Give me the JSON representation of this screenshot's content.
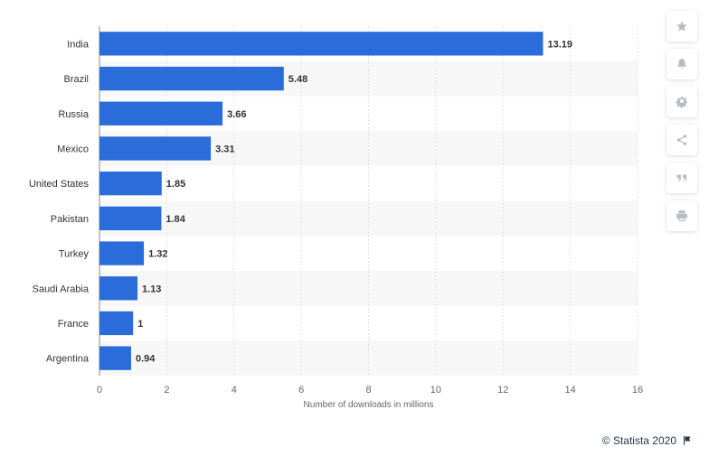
{
  "chart_data": {
    "type": "bar",
    "orientation": "horizontal",
    "categories": [
      "India",
      "Brazil",
      "Russia",
      "Mexico",
      "United States",
      "Pakistan",
      "Turkey",
      "Saudi Arabia",
      "France",
      "Argentina"
    ],
    "values": [
      13.19,
      5.48,
      3.66,
      3.31,
      1.85,
      1.84,
      1.32,
      1.13,
      1,
      0.94
    ],
    "value_labels": [
      "13.19",
      "5.48",
      "3.66",
      "3.31",
      "1.85",
      "1.84",
      "1.32",
      "1.13",
      "1",
      "0.94"
    ],
    "xlabel": "Number of downloads in millions",
    "xlim": [
      0,
      16
    ],
    "xticks": [
      0,
      2,
      4,
      6,
      8,
      10,
      12,
      14,
      16
    ],
    "grid": true,
    "bar_color": "#2a6cd9",
    "stripe_color": "#f7f7f7"
  },
  "toolbar": {
    "icons": [
      "star-icon",
      "bell-icon",
      "gear-icon",
      "share-icon",
      "quote-icon",
      "print-icon"
    ]
  },
  "footer": {
    "copyright": "© Statista 2020",
    "flag_icon": "flag-icon"
  }
}
